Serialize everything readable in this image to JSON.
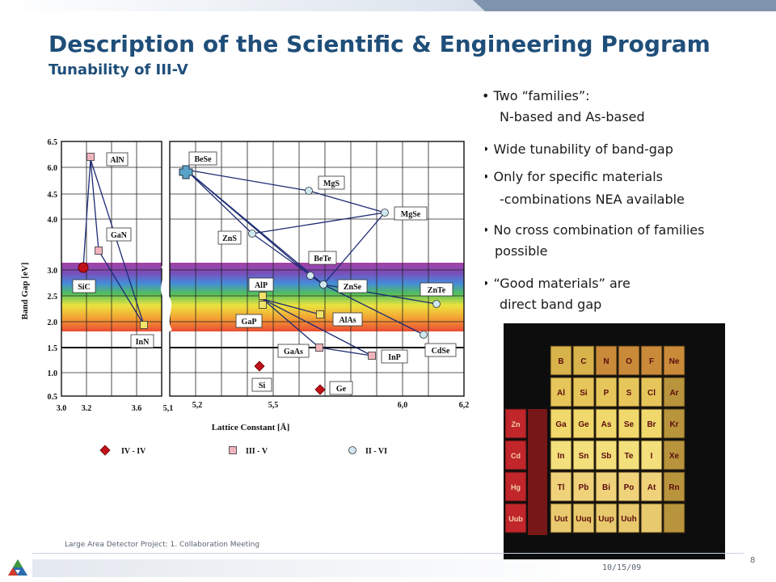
{
  "slide": {
    "title": "Description of the Scientific & Engineering Program",
    "subtitle": "Tunability of III-V",
    "bullets": [
      {
        "line1": "Two “families”:",
        "line2": "N-based and As-based"
      },
      {
        "line1": "Wide tunability of band-gap",
        "line2": ""
      },
      {
        "line1": "Only for specific materials",
        "line2": "-combinations NEA available"
      },
      {
        "line1": "No cross combination of families",
        "line2": "possible"
      },
      {
        "line1": "“Good materials” are",
        "line2": "direct band gap"
      }
    ],
    "footer": {
      "project": "Large Area Detector Project: 1. Collaboration Meeting",
      "date": "10/15/09",
      "page": "8"
    }
  },
  "chart_data": {
    "type": "scatter",
    "xlabel": "Lattice Constant [Å]",
    "ylabel": "Band Gap [eV]",
    "x_ticks_left": [
      "3.0",
      "3.2",
      "3.6",
      "5,1"
    ],
    "x_ticks_right": [
      "5,2",
      "5,5",
      "6,0",
      "6,2"
    ],
    "y_ticks": [
      "6.5",
      "6.0",
      "4.5",
      "4.0",
      "3.0",
      "2.5",
      "2.0",
      "1.5",
      "1.0",
      "0.5"
    ],
    "legend": [
      "IV - IV",
      "III - V",
      "II - VI"
    ],
    "points": [
      {
        "label": "AlN",
        "family": "III - V"
      },
      {
        "label": "GaN",
        "family": "III - V"
      },
      {
        "label": "InN",
        "family": "III - V"
      },
      {
        "label": "SiC",
        "family": "IV - IV"
      },
      {
        "label": "BeSe",
        "family": "II - VI"
      },
      {
        "label": "MgS",
        "family": "II - VI"
      },
      {
        "label": "MgSe",
        "family": "II - VI"
      },
      {
        "label": "ZnS",
        "family": "II - VI"
      },
      {
        "label": "BeTe",
        "family": "II - VI"
      },
      {
        "label": "ZnSe",
        "family": "II - VI"
      },
      {
        "label": "ZnTe",
        "family": "II - VI"
      },
      {
        "label": "CdSe",
        "family": "II - VI"
      },
      {
        "label": "AlP",
        "family": "III - V"
      },
      {
        "label": "GaP",
        "family": "III - V"
      },
      {
        "label": "AlAs",
        "family": "III - V"
      },
      {
        "label": "GaAs",
        "family": "III - V"
      },
      {
        "label": "InP",
        "family": "III - V"
      },
      {
        "label": "Si",
        "family": "IV - IV"
      },
      {
        "label": "Ge",
        "family": "IV - IV"
      }
    ],
    "colors": {
      "iv_iv": "#c0111a",
      "iii_v": "#f0b4bc",
      "ii_vi": "#cfe8f2",
      "line": "#1c2a73"
    }
  },
  "periodic_table": {
    "rows": [
      [
        "B",
        "C",
        "N",
        "O",
        "F",
        "Ne"
      ],
      [
        "Al",
        "Si",
        "P",
        "S",
        "Cl",
        "Ar"
      ],
      [
        "Ga",
        "Ge",
        "As",
        "Se",
        "Br",
        "Kr"
      ],
      [
        "In",
        "Sn",
        "Sb",
        "Te",
        "I",
        "Xe"
      ],
      [
        "Tl",
        "Pb",
        "Bi",
        "Po",
        "At",
        "Rn"
      ],
      [
        "Uut",
        "Uuq",
        "Uup",
        "Uuh",
        "",
        ""
      ]
    ],
    "left_partial": [
      "Zn",
      "Cd",
      "Hg",
      "Uub"
    ]
  }
}
